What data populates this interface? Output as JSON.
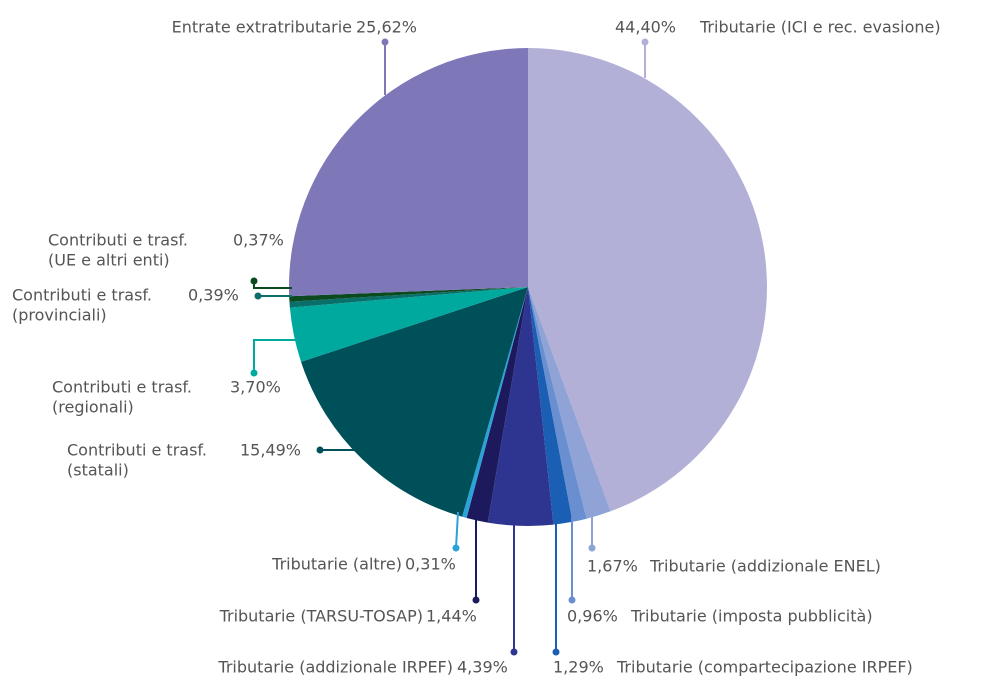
{
  "chart_data": {
    "type": "pie",
    "categories": [
      [
        "Tributarie (ICI e rec. evasione)"
      ],
      [
        "Tributarie (addizionale ENEL)"
      ],
      [
        "Tributarie (imposta pubblicità)"
      ],
      [
        "Tributarie (compartecipazione IRPEF)"
      ],
      [
        "Tributarie (addizionale IRPEF)"
      ],
      [
        "Tributarie (TARSU-TOSAP)"
      ],
      [
        "Tributarie (altre)"
      ],
      [
        "Contributi e trasf.",
        "(statali)"
      ],
      [
        "Contributi e trasf.",
        "(regionali)"
      ],
      [
        "Contributi e trasf.",
        "(provinciali)"
      ],
      [
        "Contributi e trasf.",
        "(UE e altri enti)"
      ],
      [
        "Entrate extratributarie"
      ]
    ],
    "values": [
      44.4,
      1.67,
      0.96,
      1.29,
      4.39,
      1.44,
      0.31,
      15.49,
      3.7,
      0.39,
      0.37,
      25.62
    ],
    "value_labels": [
      "44,40%",
      "1,67%",
      "0,96%",
      "1,29%",
      "4,39%",
      "1,44%",
      "0,31%",
      "15,49%",
      "3,70%",
      "0,39%",
      "0,37%",
      "25,62%"
    ],
    "colors": [
      "#b3b0d8",
      "#8fa3d6",
      "#6a8fd0",
      "#1a5fb4",
      "#2e3590",
      "#1c1a5c",
      "#2aa3d8",
      "#00505a",
      "#00a99d",
      "#0a6e6a",
      "#0a4a1e",
      "#7f78b8"
    ]
  }
}
